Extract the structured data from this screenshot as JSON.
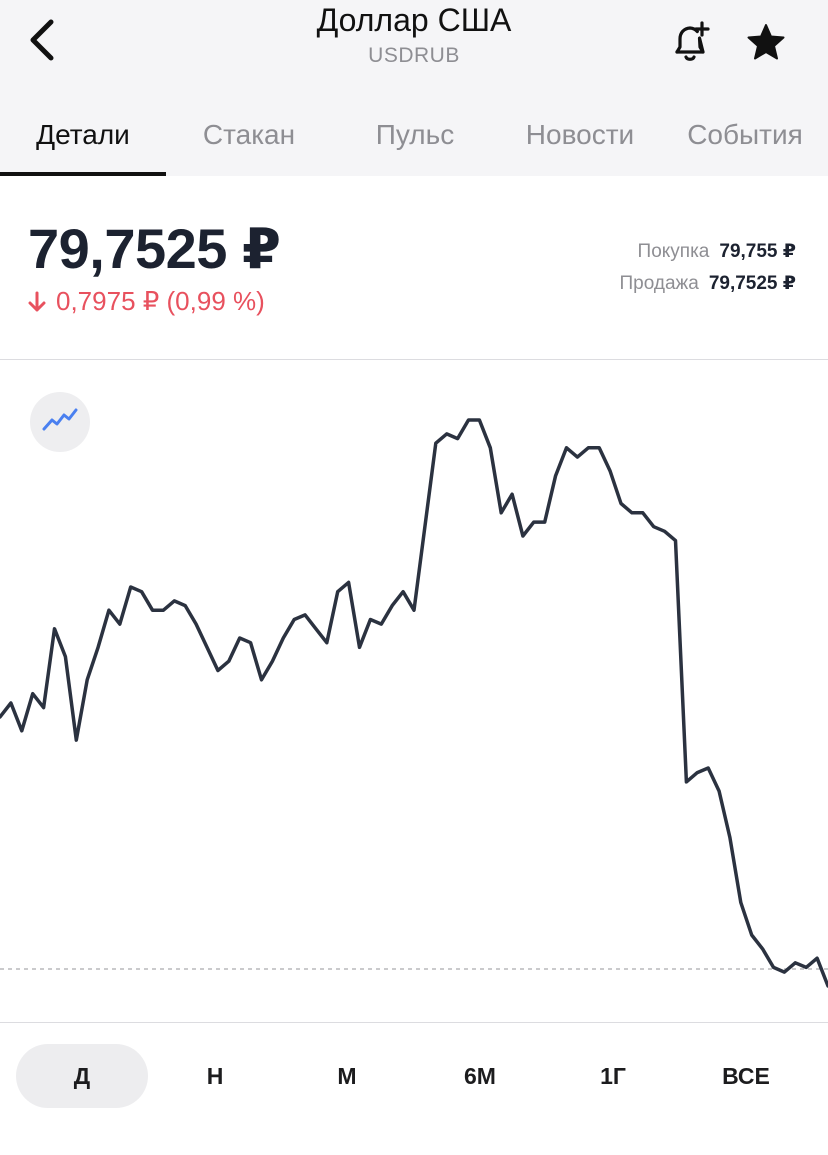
{
  "header": {
    "title": "Доллар США",
    "ticker": "USDRUB",
    "icons": {
      "back": "chevron-left-icon",
      "alert": "bell-plus-icon",
      "favorite": "star-icon"
    }
  },
  "tabs": [
    {
      "label": "Детали",
      "active": true
    },
    {
      "label": "Стакан",
      "active": false
    },
    {
      "label": "Пульс",
      "active": false
    },
    {
      "label": "Новости",
      "active": false
    },
    {
      "label": "События",
      "active": false
    }
  ],
  "price": {
    "current": "79,7525 ₽",
    "change": "0,7975 ₽ (0,99 %)",
    "direction": "down",
    "buy_label": "Покупка",
    "buy_value": "79,755 ₽",
    "sell_label": "Продажа",
    "sell_value": "79,7525 ₽"
  },
  "colors": {
    "negative": "#e8515e",
    "line": "#2b3240",
    "chart_type_icon": "#4a80f0"
  },
  "chart_data": {
    "type": "line",
    "series": [
      {
        "values": [
          80.35,
          80.5,
          80.2,
          80.6,
          80.45,
          81.3,
          81.0,
          80.1,
          80.75,
          81.1,
          81.5,
          81.35,
          81.75,
          81.7,
          81.5,
          81.5,
          81.6,
          81.55,
          81.35,
          81.1,
          80.85,
          80.95,
          81.2,
          81.15,
          80.75,
          80.95,
          81.2,
          81.4,
          81.45,
          81.3,
          81.15,
          81.7,
          81.8,
          81.1,
          81.4,
          81.35,
          81.55,
          81.7,
          81.5,
          82.4,
          83.3,
          83.4,
          83.35,
          83.55,
          83.55,
          83.25,
          82.55,
          82.75,
          82.3,
          82.45,
          82.45,
          82.95,
          83.25,
          83.15,
          83.25,
          83.25,
          83.0,
          82.65,
          82.55,
          82.55,
          82.4,
          82.35,
          82.25,
          79.65,
          79.75,
          79.8,
          79.55,
          79.05,
          78.35,
          78.0,
          77.85,
          77.65,
          77.6,
          77.7,
          77.65,
          77.75,
          77.45
        ]
      }
    ],
    "reference_line": 77.45,
    "grid": false,
    "legend": "none"
  },
  "chart_type_icon": "line-chart-icon",
  "periods": [
    {
      "label": "Д",
      "active": true
    },
    {
      "label": "Н",
      "active": false
    },
    {
      "label": "М",
      "active": false
    },
    {
      "label": "6М",
      "active": false
    },
    {
      "label": "1Г",
      "active": false
    },
    {
      "label": "ВСЕ",
      "active": false
    }
  ]
}
